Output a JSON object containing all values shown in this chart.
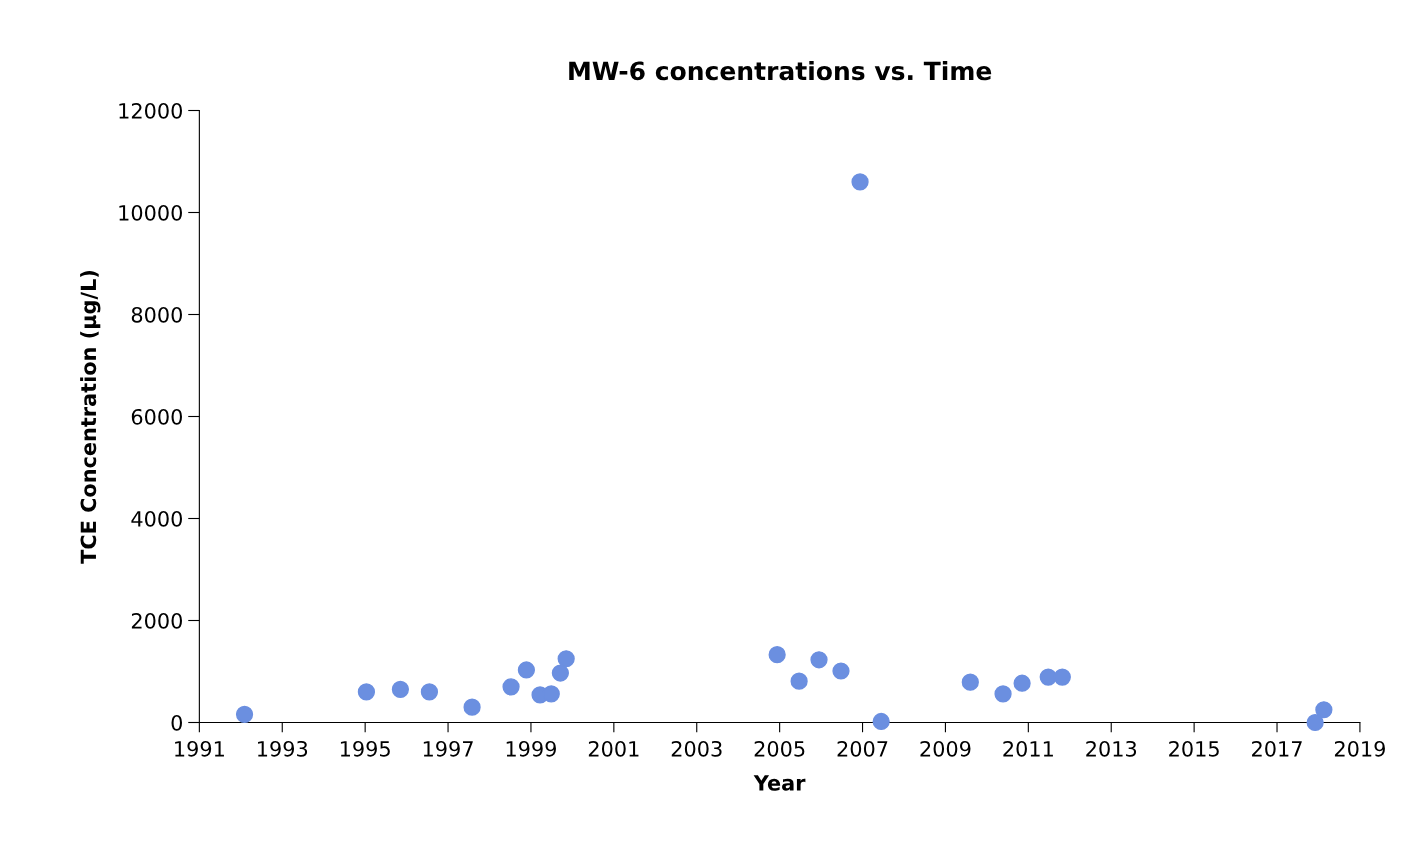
{
  "chart_data": {
    "type": "scatter",
    "title": "MW-6 concentrations vs. Time",
    "xlabel": "Year",
    "ylabel": "TCE Concentration (µg/L)",
    "x": [
      1992.09,
      1995.03,
      1995.85,
      1996.55,
      1997.58,
      1998.52,
      1998.89,
      1999.22,
      1999.49,
      1999.71,
      1999.85,
      2004.94,
      2005.47,
      2005.95,
      2006.48,
      2006.94,
      2007.45,
      2009.6,
      2010.39,
      2010.85,
      2011.48,
      2011.82,
      2017.92,
      2018.13
    ],
    "values": [
      160,
      600,
      650,
      600,
      300,
      700,
      1030,
      540,
      560,
      970,
      1250,
      1330,
      810,
      1230,
      1010,
      10600,
      20,
      790,
      560,
      770,
      890,
      890,
      0,
      250
    ],
    "color": "#6b8fe0",
    "marker": "circle",
    "grid": false,
    "xlim": [
      1991,
      2019
    ],
    "xticks": [
      1991,
      1993,
      1995,
      1997,
      1999,
      2001,
      2003,
      2005,
      2007,
      2009,
      2011,
      2013,
      2015,
      2017,
      2019
    ],
    "ylim": [
      0,
      12000
    ],
    "yticks": [
      0,
      2000,
      4000,
      6000,
      8000,
      10000,
      12000
    ]
  }
}
